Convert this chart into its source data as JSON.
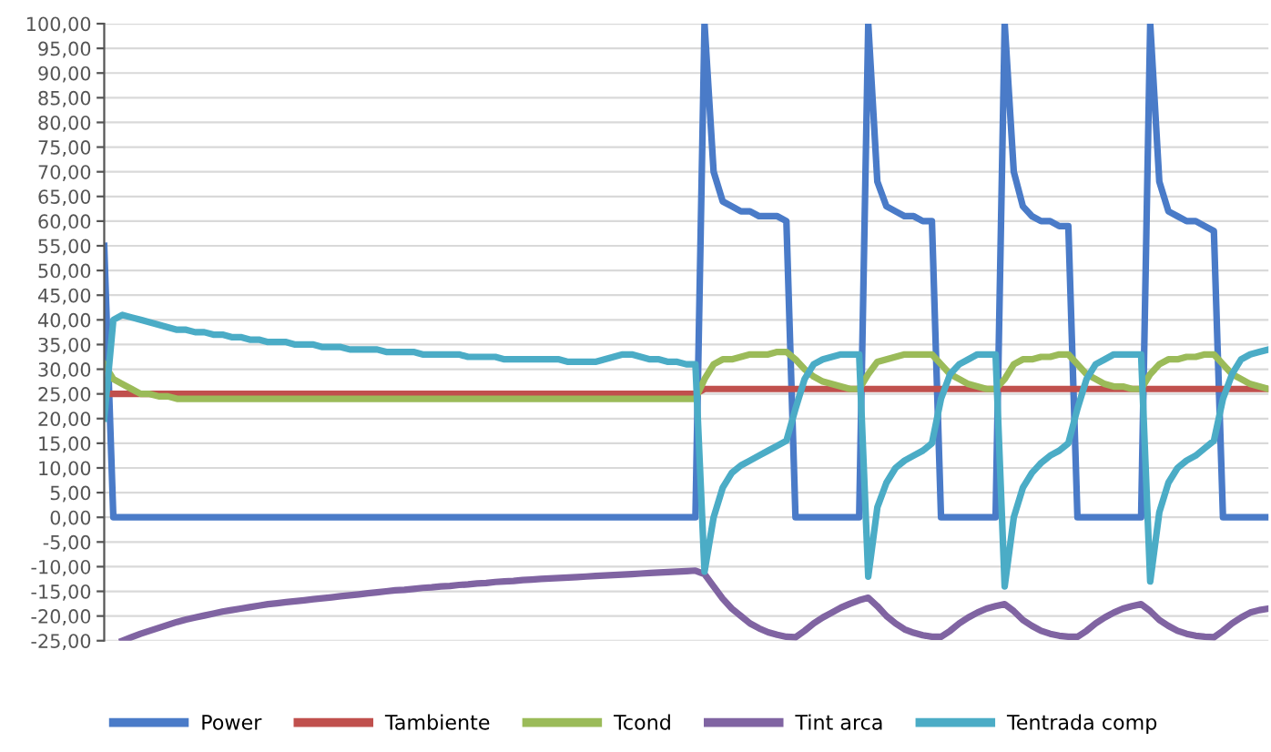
{
  "chart_data": {
    "type": "line",
    "categories": [
      null,
      null,
      null,
      null,
      null,
      null,
      null,
      null,
      null,
      null,
      null,
      null,
      null,
      null,
      null,
      null,
      null,
      null,
      null,
      null,
      null,
      null,
      null,
      null,
      null,
      null,
      null,
      null,
      null,
      null,
      null,
      null,
      null,
      null,
      null,
      null,
      null,
      null,
      null,
      null,
      null,
      null,
      null,
      null,
      null,
      null,
      null,
      null,
      null,
      null,
      null,
      null,
      null,
      null,
      null,
      null,
      null,
      null,
      null,
      null,
      null,
      null,
      null,
      null,
      null,
      null,
      null,
      null,
      null,
      null,
      null,
      null,
      null,
      null,
      null,
      null,
      null,
      null,
      null,
      null,
      null,
      null,
      null,
      null,
      null,
      null,
      null,
      null,
      null,
      null,
      null,
      null,
      null,
      null,
      null,
      null,
      null,
      null,
      null,
      null,
      null,
      null,
      null,
      null,
      null,
      null,
      null,
      null,
      null,
      null,
      null,
      null,
      null,
      null,
      null,
      null,
      null,
      null,
      null,
      null,
      null,
      null,
      null,
      null,
      null,
      null,
      null,
      null,
      null
    ],
    "series": [
      {
        "name": "Power",
        "color": "#4a7bc8",
        "values": [
          55,
          0,
          0,
          0,
          0,
          0,
          0,
          0,
          0,
          0,
          0,
          0,
          0,
          0,
          0,
          0,
          0,
          0,
          0,
          0,
          0,
          0,
          0,
          0,
          0,
          0,
          0,
          0,
          0,
          0,
          0,
          0,
          0,
          0,
          0,
          0,
          0,
          0,
          0,
          0,
          0,
          0,
          0,
          0,
          0,
          0,
          0,
          0,
          0,
          0,
          0,
          0,
          0,
          0,
          0,
          0,
          0,
          0,
          0,
          0,
          0,
          0,
          0,
          0,
          0,
          0,
          100,
          70,
          64,
          63,
          62,
          62,
          61,
          61,
          61,
          60,
          0,
          0,
          0,
          0,
          0,
          0,
          0,
          0,
          100,
          68,
          63,
          62,
          61,
          61,
          60,
          60,
          0,
          0,
          0,
          0,
          0,
          0,
          0,
          100,
          70,
          63,
          61,
          60,
          60,
          59,
          59,
          0,
          0,
          0,
          0,
          0,
          0,
          0,
          0,
          100,
          68,
          62,
          61,
          60,
          60,
          59,
          58,
          0,
          0,
          0,
          0,
          0,
          0
        ]
      },
      {
        "name": "Tambiente",
        "color": "#c0504d",
        "values": [
          25,
          25,
          25,
          25,
          25,
          25,
          25,
          25,
          25,
          25,
          25,
          25,
          25,
          25,
          25,
          25,
          25,
          25,
          25,
          25,
          25,
          25,
          25,
          25,
          25,
          25,
          25,
          25,
          25,
          25,
          25,
          25,
          25,
          25,
          25,
          25,
          25,
          25,
          25,
          25,
          25,
          25,
          25,
          25,
          25,
          25,
          25,
          25,
          25,
          25,
          25,
          25,
          25,
          25,
          25,
          25,
          25,
          25,
          25,
          25,
          25,
          25,
          25,
          25,
          25,
          25,
          26,
          26,
          26,
          26,
          26,
          26,
          26,
          26,
          26,
          26,
          26,
          26,
          26,
          26,
          26,
          26,
          26,
          26,
          26,
          26,
          26,
          26,
          26,
          26,
          26,
          26,
          26,
          26,
          26,
          26,
          26,
          26,
          26,
          26,
          26,
          26,
          26,
          26,
          26,
          26,
          26,
          26,
          26,
          26,
          26,
          26,
          26,
          26,
          26,
          26,
          26,
          26,
          26,
          26,
          26,
          26,
          26,
          26,
          26,
          26,
          26,
          26,
          26
        ]
      },
      {
        "name": "Tcond",
        "color": "#9bbb59",
        "values": [
          31,
          28,
          27,
          26,
          25,
          25,
          24.5,
          24.5,
          24,
          24,
          24,
          24,
          24,
          24,
          24,
          24,
          24,
          24,
          24,
          24,
          24,
          24,
          24,
          24,
          24,
          24,
          24,
          24,
          24,
          24,
          24,
          24,
          24,
          24,
          24,
          24,
          24,
          24,
          24,
          24,
          24,
          24,
          24,
          24,
          24,
          24,
          24,
          24,
          24,
          24,
          24,
          24,
          24,
          24,
          24,
          24,
          24,
          24,
          24,
          24,
          24,
          24,
          24,
          24,
          24,
          24,
          28,
          31,
          32,
          32,
          32.5,
          33,
          33,
          33,
          33.5,
          33.5,
          32,
          30,
          28.5,
          27.5,
          27,
          26.5,
          26,
          26,
          29,
          31.5,
          32,
          32.5,
          33,
          33,
          33,
          33,
          31,
          29,
          28,
          27,
          26.5,
          26,
          26,
          28,
          31,
          32,
          32,
          32.5,
          32.5,
          33,
          33,
          31,
          29,
          28,
          27,
          26.5,
          26.5,
          26,
          26,
          29,
          31,
          32,
          32,
          32.5,
          32.5,
          33,
          33,
          31,
          29,
          28,
          27,
          26.5,
          26
        ]
      },
      {
        "name": "Tint arca",
        "color": "#8064a2",
        "values": [
          null,
          null,
          -25,
          -24.3,
          -23.6,
          -23,
          -22.4,
          -21.8,
          -21.2,
          -20.7,
          -20.3,
          -19.9,
          -19.5,
          -19.1,
          -18.8,
          -18.5,
          -18.2,
          -17.9,
          -17.6,
          -17.4,
          -17.2,
          -17,
          -16.8,
          -16.6,
          -16.4,
          -16.2,
          -16,
          -15.8,
          -15.6,
          -15.4,
          -15.2,
          -15,
          -14.8,
          -14.7,
          -14.5,
          -14.3,
          -14.2,
          -14,
          -13.9,
          -13.7,
          -13.6,
          -13.4,
          -13.3,
          -13.1,
          -13,
          -12.9,
          -12.7,
          -12.6,
          -12.5,
          -12.4,
          -12.3,
          -12.2,
          -12.1,
          -12,
          -11.9,
          -11.8,
          -11.7,
          -11.6,
          -11.5,
          -11.4,
          -11.3,
          -11.2,
          -11.1,
          -11,
          -10.9,
          -10.8,
          -11.5,
          -14,
          -16.5,
          -18.5,
          -20,
          -21.5,
          -22.5,
          -23.3,
          -23.8,
          -24.2,
          -24.3,
          -23,
          -21.5,
          -20.3,
          -19.3,
          -18.3,
          -17.5,
          -16.8,
          -16.3,
          -18,
          -20,
          -21.5,
          -22.7,
          -23.4,
          -23.9,
          -24.2,
          -24.2,
          -23,
          -21.5,
          -20.3,
          -19.3,
          -18.5,
          -18,
          -17.6,
          -19,
          -20.8,
          -22,
          -23,
          -23.6,
          -24,
          -24.2,
          -24.2,
          -23,
          -21.5,
          -20.3,
          -19.3,
          -18.5,
          -18,
          -17.6,
          -19,
          -20.8,
          -22,
          -23,
          -23.6,
          -24,
          -24.2,
          -24.3,
          -23,
          -21.5,
          -20.3,
          -19.3,
          -18.8,
          -18.5
        ]
      },
      {
        "name": "Tentrada comp",
        "color": "#4bacc6",
        "values": [
          20,
          40,
          41,
          40.5,
          40,
          39.5,
          39,
          38.5,
          38,
          38,
          37.5,
          37.5,
          37,
          37,
          36.5,
          36.5,
          36,
          36,
          35.5,
          35.5,
          35.5,
          35,
          35,
          35,
          34.5,
          34.5,
          34.5,
          34,
          34,
          34,
          34,
          33.5,
          33.5,
          33.5,
          33.5,
          33,
          33,
          33,
          33,
          33,
          32.5,
          32.5,
          32.5,
          32.5,
          32,
          32,
          32,
          32,
          32,
          32,
          32,
          31.5,
          31.5,
          31.5,
          31.5,
          32,
          32.5,
          33,
          33,
          32.5,
          32,
          32,
          31.5,
          31.5,
          31,
          31,
          -11,
          0,
          6,
          9,
          10.5,
          11.5,
          12.5,
          13.5,
          14.5,
          15.5,
          22,
          28,
          31,
          32,
          32.5,
          33,
          33,
          33,
          -12,
          2,
          7,
          10,
          11.5,
          12.5,
          13.5,
          15,
          24,
          29,
          31,
          32,
          33,
          33,
          33,
          -14,
          0,
          6,
          9,
          11,
          12.5,
          13.5,
          15,
          22,
          28,
          31,
          32,
          33,
          33,
          33,
          33,
          -13,
          1,
          7,
          10,
          11.5,
          12.5,
          14,
          15.5,
          24,
          29,
          32,
          33,
          33.5,
          34
        ]
      }
    ],
    "ylim": [
      -25,
      100
    ],
    "yticks": [
      {
        "value": 100,
        "label": "100,00"
      },
      {
        "value": 95,
        "label": "95,00"
      },
      {
        "value": 90,
        "label": "90,00"
      },
      {
        "value": 85,
        "label": "85,00"
      },
      {
        "value": 80,
        "label": "80,00"
      },
      {
        "value": 75,
        "label": "75,00"
      },
      {
        "value": 70,
        "label": "70,00"
      },
      {
        "value": 65,
        "label": "65,00"
      },
      {
        "value": 60,
        "label": "60,00"
      },
      {
        "value": 55,
        "label": "55,00"
      },
      {
        "value": 50,
        "label": "50,00"
      },
      {
        "value": 45,
        "label": "45,00"
      },
      {
        "value": 40,
        "label": "40,00"
      },
      {
        "value": 35,
        "label": "35,00"
      },
      {
        "value": 30,
        "label": "30,00"
      },
      {
        "value": 25,
        "label": "25,00"
      },
      {
        "value": 20,
        "label": "20,00"
      },
      {
        "value": 15,
        "label": "15,00"
      },
      {
        "value": 10,
        "label": "10,00"
      },
      {
        "value": 5,
        "label": "5,00"
      },
      {
        "value": 0,
        "label": "0,00"
      },
      {
        "value": -5,
        "label": "-5,00"
      },
      {
        "value": -10,
        "label": "-10,00"
      },
      {
        "value": -15,
        "label": "-15,00"
      },
      {
        "value": -20,
        "label": "-20,00"
      },
      {
        "value": -25,
        "label": "-25,00"
      }
    ],
    "grid": "y",
    "legend": "bottom",
    "tick_labels": "y",
    "marker": "none",
    "line_style": "solid"
  }
}
